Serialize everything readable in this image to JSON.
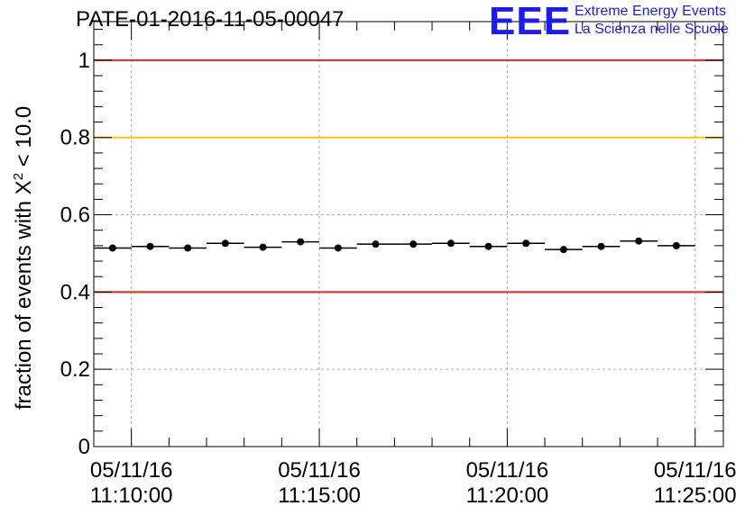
{
  "header": {
    "title": "PATE-01-2016-11-05-00047",
    "logo_letters": "EEE",
    "logo_line1": "Extreme Energy Events",
    "logo_line2": "La Scienza nelle Scuole"
  },
  "colors": {
    "threshold_red": "#e8241c",
    "threshold_yellow": "#ffc400",
    "logo_blue": "#1a1aff",
    "grid": "#aaaaaa"
  },
  "chart_data": {
    "type": "scatter",
    "title": "PATE-01-2016-11-05-00047",
    "xlabel": "",
    "ylabel_prefix": "fraction of events with ",
    "ylabel_symbol": "X",
    "ylabel_sup": "2",
    "ylabel_suffix": " < 10.0",
    "ylim": [
      0,
      1.1
    ],
    "xlim_minutes_after_11_10": [
      -1.0,
      15.75
    ],
    "x_ticks": [
      {
        "date": "05/11/16",
        "time": "11:10:00",
        "minutes": 0
      },
      {
        "date": "05/11/16",
        "time": "11:15:00",
        "minutes": 5
      },
      {
        "date": "05/11/16",
        "time": "11:20:00",
        "minutes": 10
      },
      {
        "date": "05/11/16",
        "time": "11:25:00",
        "minutes": 15
      }
    ],
    "y_ticks": [
      "0",
      "0.2",
      "0.4",
      "0.6",
      "0.8",
      "1"
    ],
    "y_tick_values": [
      0,
      0.2,
      0.4,
      0.6,
      0.8,
      1.0
    ],
    "grid": true,
    "reference_lines": [
      {
        "y": 1.0,
        "color": "red"
      },
      {
        "y": 0.8,
        "color": "yellow"
      },
      {
        "y": 0.4,
        "color": "red"
      }
    ],
    "bin_width_minutes": 1.0,
    "points": [
      {
        "x": -0.5,
        "y": 0.514
      },
      {
        "x": 0.5,
        "y": 0.518
      },
      {
        "x": 1.5,
        "y": 0.514
      },
      {
        "x": 2.5,
        "y": 0.526
      },
      {
        "x": 3.5,
        "y": 0.516
      },
      {
        "x": 4.5,
        "y": 0.53
      },
      {
        "x": 5.5,
        "y": 0.514
      },
      {
        "x": 6.5,
        "y": 0.524
      },
      {
        "x": 7.5,
        "y": 0.524
      },
      {
        "x": 8.5,
        "y": 0.526
      },
      {
        "x": 9.5,
        "y": 0.518
      },
      {
        "x": 10.5,
        "y": 0.526
      },
      {
        "x": 11.5,
        "y": 0.51
      },
      {
        "x": 12.5,
        "y": 0.518
      },
      {
        "x": 13.5,
        "y": 0.532
      },
      {
        "x": 14.5,
        "y": 0.52
      }
    ]
  }
}
